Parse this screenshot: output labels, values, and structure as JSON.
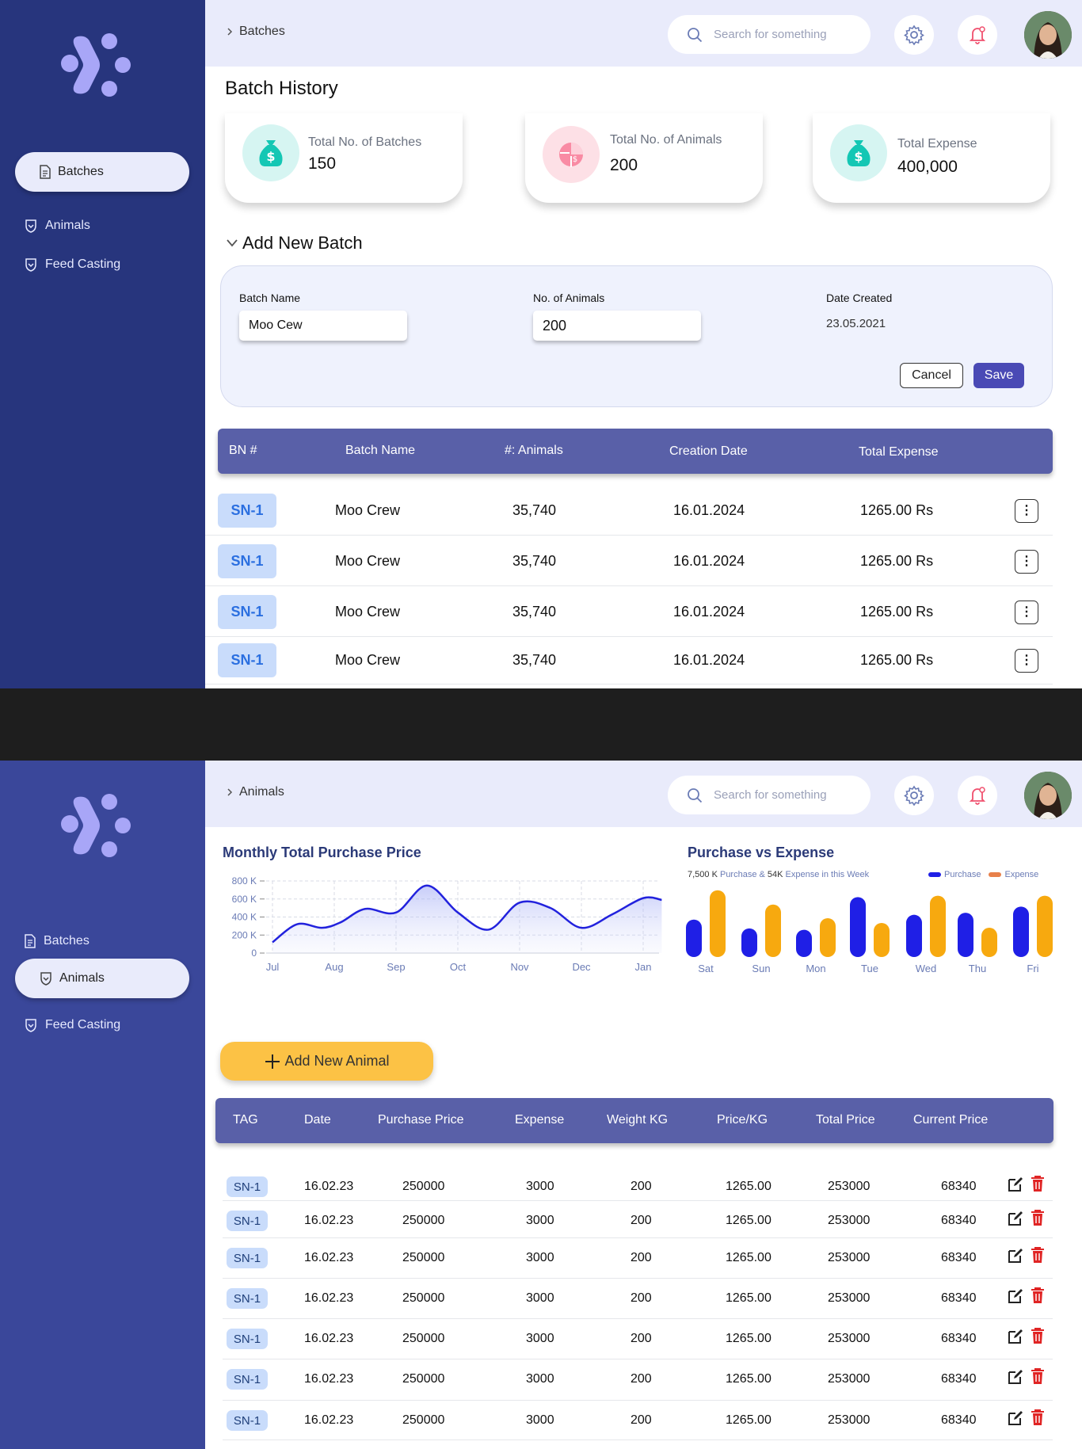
{
  "screen1": {
    "breadcrumb": "Batches",
    "search_placeholder": "Search for something",
    "nav": {
      "batches": "Batches",
      "animals": "Animals",
      "feed": "Feed Casting"
    },
    "title": "Batch History",
    "cards": [
      {
        "label": "Total No. of Batches",
        "value": "150"
      },
      {
        "label": "Total No. of Animals",
        "value": "200"
      },
      {
        "label": "Total Expense",
        "value": "400,000"
      }
    ],
    "add_title": "Add New Batch",
    "form": {
      "batch_name_label": "Batch Name",
      "batch_name_value": "Moo Cew",
      "animals_label": "No. of Animals",
      "animals_value": "200",
      "date_label": "Date Created",
      "date_value": "23.05.2021",
      "cancel": "Cancel",
      "save": "Save"
    },
    "table": {
      "headers": [
        "BN #",
        "Batch Name",
        "#: Animals",
        "Creation Date",
        "Total Expense"
      ],
      "rows": [
        {
          "bn": "SN-1",
          "name": "Moo Crew",
          "animals": "35,740",
          "date": "16.01.2024",
          "expense": "1265.00 Rs"
        },
        {
          "bn": "SN-1",
          "name": "Moo Crew",
          "animals": "35,740",
          "date": "16.01.2024",
          "expense": "1265.00 Rs"
        },
        {
          "bn": "SN-1",
          "name": "Moo Crew",
          "animals": "35,740",
          "date": "16.01.2024",
          "expense": "1265.00 Rs"
        },
        {
          "bn": "SN-1",
          "name": "Moo Crew",
          "animals": "35,740",
          "date": "16.01.2024",
          "expense": "1265.00 Rs"
        }
      ]
    }
  },
  "screen2": {
    "breadcrumb": "Animals",
    "search_placeholder": "Search for something",
    "nav": {
      "batches": "Batches",
      "animals": "Animals",
      "feed": "Feed Casting"
    },
    "add_button": "Add New Animal",
    "table": {
      "headers": [
        "TAG",
        "Date",
        "Purchase Price",
        "Expense",
        "Weight KG",
        "Price/KG",
        "Total Price",
        "Current Price"
      ],
      "rows": [
        {
          "tag": "SN-1",
          "date": "16.02.23",
          "purchase": "250000",
          "expense": "3000",
          "weight": "200",
          "ppk": "1265.00",
          "total": "253000",
          "current": "68340"
        },
        {
          "tag": "SN-1",
          "date": "16.02.23",
          "purchase": "250000",
          "expense": "3000",
          "weight": "200",
          "ppk": "1265.00",
          "total": "253000",
          "current": "68340"
        },
        {
          "tag": "SN-1",
          "date": "16.02.23",
          "purchase": "250000",
          "expense": "3000",
          "weight": "200",
          "ppk": "1265.00",
          "total": "253000",
          "current": "68340"
        },
        {
          "tag": "SN-1",
          "date": "16.02.23",
          "purchase": "250000",
          "expense": "3000",
          "weight": "200",
          "ppk": "1265.00",
          "total": "253000",
          "current": "68340"
        },
        {
          "tag": "SN-1",
          "date": "16.02.23",
          "purchase": "250000",
          "expense": "3000",
          "weight": "200",
          "ppk": "1265.00",
          "total": "253000",
          "current": "68340"
        },
        {
          "tag": "SN-1",
          "date": "16.02.23",
          "purchase": "250000",
          "expense": "3000",
          "weight": "200",
          "ppk": "1265.00",
          "total": "253000",
          "current": "68340"
        },
        {
          "tag": "SN-1",
          "date": "16.02.23",
          "purchase": "250000",
          "expense": "3000",
          "weight": "200",
          "ppk": "1265.00",
          "total": "253000",
          "current": "68340"
        }
      ]
    }
  },
  "chart_data": [
    {
      "type": "area",
      "title": "Monthly Total Purchase Price",
      "xlabel": "",
      "ylabel": "",
      "x_ticks": [
        "Jul",
        "Aug",
        "Sep",
        "Oct",
        "Nov",
        "Dec",
        "Jan"
      ],
      "y_ticks": [
        "800 K",
        "600 K",
        "400 K",
        "200 K",
        "0"
      ],
      "ylim": [
        0,
        800
      ],
      "series": [
        {
          "points": [
            [
              0,
              120
            ],
            [
              0.4,
              320
            ],
            [
              0.8,
              280
            ],
            [
              1.1,
              340
            ],
            [
              1.5,
              490
            ],
            [
              2.0,
              450
            ],
            [
              2.5,
              750
            ],
            [
              3.0,
              450
            ],
            [
              3.5,
              260
            ],
            [
              4.0,
              560
            ],
            [
              4.5,
              500
            ],
            [
              5.0,
              280
            ],
            [
              5.5,
              430
            ],
            [
              6.0,
              610
            ],
            [
              6.3,
              590
            ]
          ]
        }
      ],
      "grid": true,
      "color": "#2222dd"
    },
    {
      "type": "bar",
      "title": "Purchase vs Expense",
      "subtitle": {
        "a": "7,500 K",
        "b": " Purchase & ",
        "c": "54K",
        "d": " Expense in this Week"
      },
      "categories": [
        "Sat",
        "Sun",
        "Mon",
        "Tue",
        "Wed",
        "Thu",
        "Fri"
      ],
      "series": [
        {
          "name": "Purchase",
          "color": "#1f1fe6",
          "values": [
            55,
            42,
            40,
            88,
            62,
            65,
            74
          ]
        },
        {
          "name": "Expense",
          "color": "#f7a90f",
          "values": [
            98,
            77,
            57,
            50,
            90,
            43,
            90
          ]
        }
      ],
      "ylim": [
        0,
        100
      ],
      "legend": "top-right"
    }
  ]
}
